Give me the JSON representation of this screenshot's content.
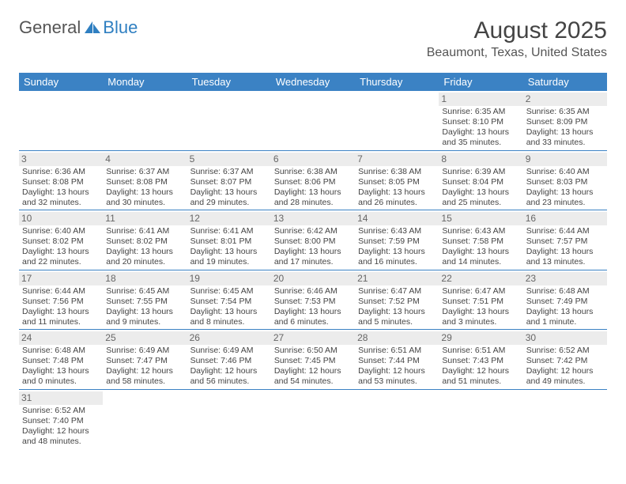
{
  "logo": {
    "text1": "General",
    "text2": "Blue"
  },
  "title": "August 2025",
  "location": "Beaumont, Texas, United States",
  "colors": {
    "header_bg": "#3b82c4",
    "header_fg": "#ffffff",
    "daynum_bg": "#ececec",
    "border": "#3b82c4"
  },
  "weekdays": [
    "Sunday",
    "Monday",
    "Tuesday",
    "Wednesday",
    "Thursday",
    "Friday",
    "Saturday"
  ],
  "weeks": [
    [
      null,
      null,
      null,
      null,
      null,
      {
        "n": "1",
        "sr": "Sunrise: 6:35 AM",
        "ss": "Sunset: 8:10 PM",
        "d1": "Daylight: 13 hours",
        "d2": "and 35 minutes."
      },
      {
        "n": "2",
        "sr": "Sunrise: 6:35 AM",
        "ss": "Sunset: 8:09 PM",
        "d1": "Daylight: 13 hours",
        "d2": "and 33 minutes."
      }
    ],
    [
      {
        "n": "3",
        "sr": "Sunrise: 6:36 AM",
        "ss": "Sunset: 8:08 PM",
        "d1": "Daylight: 13 hours",
        "d2": "and 32 minutes."
      },
      {
        "n": "4",
        "sr": "Sunrise: 6:37 AM",
        "ss": "Sunset: 8:08 PM",
        "d1": "Daylight: 13 hours",
        "d2": "and 30 minutes."
      },
      {
        "n": "5",
        "sr": "Sunrise: 6:37 AM",
        "ss": "Sunset: 8:07 PM",
        "d1": "Daylight: 13 hours",
        "d2": "and 29 minutes."
      },
      {
        "n": "6",
        "sr": "Sunrise: 6:38 AM",
        "ss": "Sunset: 8:06 PM",
        "d1": "Daylight: 13 hours",
        "d2": "and 28 minutes."
      },
      {
        "n": "7",
        "sr": "Sunrise: 6:38 AM",
        "ss": "Sunset: 8:05 PM",
        "d1": "Daylight: 13 hours",
        "d2": "and 26 minutes."
      },
      {
        "n": "8",
        "sr": "Sunrise: 6:39 AM",
        "ss": "Sunset: 8:04 PM",
        "d1": "Daylight: 13 hours",
        "d2": "and 25 minutes."
      },
      {
        "n": "9",
        "sr": "Sunrise: 6:40 AM",
        "ss": "Sunset: 8:03 PM",
        "d1": "Daylight: 13 hours",
        "d2": "and 23 minutes."
      }
    ],
    [
      {
        "n": "10",
        "sr": "Sunrise: 6:40 AM",
        "ss": "Sunset: 8:02 PM",
        "d1": "Daylight: 13 hours",
        "d2": "and 22 minutes."
      },
      {
        "n": "11",
        "sr": "Sunrise: 6:41 AM",
        "ss": "Sunset: 8:02 PM",
        "d1": "Daylight: 13 hours",
        "d2": "and 20 minutes."
      },
      {
        "n": "12",
        "sr": "Sunrise: 6:41 AM",
        "ss": "Sunset: 8:01 PM",
        "d1": "Daylight: 13 hours",
        "d2": "and 19 minutes."
      },
      {
        "n": "13",
        "sr": "Sunrise: 6:42 AM",
        "ss": "Sunset: 8:00 PM",
        "d1": "Daylight: 13 hours",
        "d2": "and 17 minutes."
      },
      {
        "n": "14",
        "sr": "Sunrise: 6:43 AM",
        "ss": "Sunset: 7:59 PM",
        "d1": "Daylight: 13 hours",
        "d2": "and 16 minutes."
      },
      {
        "n": "15",
        "sr": "Sunrise: 6:43 AM",
        "ss": "Sunset: 7:58 PM",
        "d1": "Daylight: 13 hours",
        "d2": "and 14 minutes."
      },
      {
        "n": "16",
        "sr": "Sunrise: 6:44 AM",
        "ss": "Sunset: 7:57 PM",
        "d1": "Daylight: 13 hours",
        "d2": "and 13 minutes."
      }
    ],
    [
      {
        "n": "17",
        "sr": "Sunrise: 6:44 AM",
        "ss": "Sunset: 7:56 PM",
        "d1": "Daylight: 13 hours",
        "d2": "and 11 minutes."
      },
      {
        "n": "18",
        "sr": "Sunrise: 6:45 AM",
        "ss": "Sunset: 7:55 PM",
        "d1": "Daylight: 13 hours",
        "d2": "and 9 minutes."
      },
      {
        "n": "19",
        "sr": "Sunrise: 6:45 AM",
        "ss": "Sunset: 7:54 PM",
        "d1": "Daylight: 13 hours",
        "d2": "and 8 minutes."
      },
      {
        "n": "20",
        "sr": "Sunrise: 6:46 AM",
        "ss": "Sunset: 7:53 PM",
        "d1": "Daylight: 13 hours",
        "d2": "and 6 minutes."
      },
      {
        "n": "21",
        "sr": "Sunrise: 6:47 AM",
        "ss": "Sunset: 7:52 PM",
        "d1": "Daylight: 13 hours",
        "d2": "and 5 minutes."
      },
      {
        "n": "22",
        "sr": "Sunrise: 6:47 AM",
        "ss": "Sunset: 7:51 PM",
        "d1": "Daylight: 13 hours",
        "d2": "and 3 minutes."
      },
      {
        "n": "23",
        "sr": "Sunrise: 6:48 AM",
        "ss": "Sunset: 7:49 PM",
        "d1": "Daylight: 13 hours",
        "d2": "and 1 minute."
      }
    ],
    [
      {
        "n": "24",
        "sr": "Sunrise: 6:48 AM",
        "ss": "Sunset: 7:48 PM",
        "d1": "Daylight: 13 hours",
        "d2": "and 0 minutes."
      },
      {
        "n": "25",
        "sr": "Sunrise: 6:49 AM",
        "ss": "Sunset: 7:47 PM",
        "d1": "Daylight: 12 hours",
        "d2": "and 58 minutes."
      },
      {
        "n": "26",
        "sr": "Sunrise: 6:49 AM",
        "ss": "Sunset: 7:46 PM",
        "d1": "Daylight: 12 hours",
        "d2": "and 56 minutes."
      },
      {
        "n": "27",
        "sr": "Sunrise: 6:50 AM",
        "ss": "Sunset: 7:45 PM",
        "d1": "Daylight: 12 hours",
        "d2": "and 54 minutes."
      },
      {
        "n": "28",
        "sr": "Sunrise: 6:51 AM",
        "ss": "Sunset: 7:44 PM",
        "d1": "Daylight: 12 hours",
        "d2": "and 53 minutes."
      },
      {
        "n": "29",
        "sr": "Sunrise: 6:51 AM",
        "ss": "Sunset: 7:43 PM",
        "d1": "Daylight: 12 hours",
        "d2": "and 51 minutes."
      },
      {
        "n": "30",
        "sr": "Sunrise: 6:52 AM",
        "ss": "Sunset: 7:42 PM",
        "d1": "Daylight: 12 hours",
        "d2": "and 49 minutes."
      }
    ],
    [
      {
        "n": "31",
        "sr": "Sunrise: 6:52 AM",
        "ss": "Sunset: 7:40 PM",
        "d1": "Daylight: 12 hours",
        "d2": "and 48 minutes."
      },
      null,
      null,
      null,
      null,
      null,
      null
    ]
  ]
}
